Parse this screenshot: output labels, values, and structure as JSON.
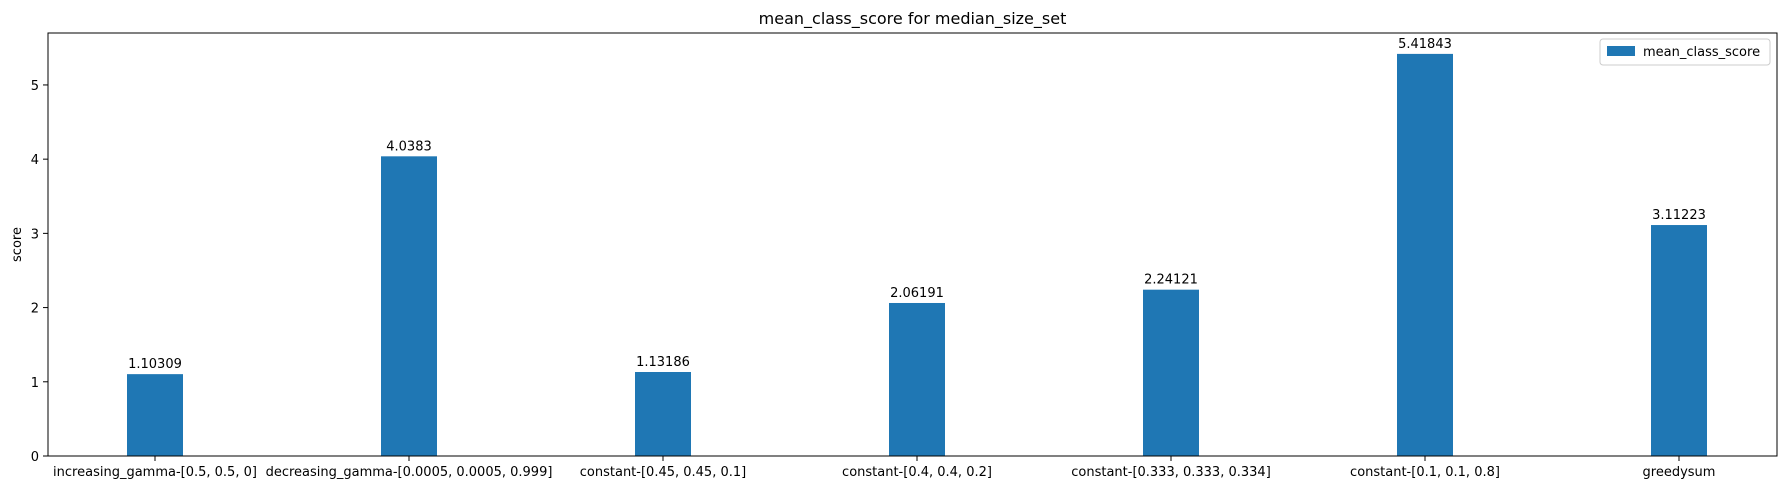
{
  "chart_data": {
    "type": "bar",
    "title": "mean_class_score for median_size_set",
    "xlabel": "",
    "ylabel": "score",
    "categories": [
      "increasing_gamma-[0.5, 0.5, 0]",
      "decreasing_gamma-[0.0005, 0.0005, 0.999]",
      "constant-[0.45, 0.45, 0.1]",
      "constant-[0.4, 0.4, 0.2]",
      "constant-[0.333, 0.333, 0.334]",
      "constant-[0.1, 0.1, 0.8]",
      "greedysum"
    ],
    "series": [
      {
        "name": "mean_class_score",
        "color": "#1f77b4",
        "values": [
          1.10309,
          4.0383,
          1.13186,
          2.06191,
          2.24121,
          5.41843,
          3.11223
        ]
      }
    ],
    "data_labels": [
      "1.10309",
      "4.0383",
      "1.13186",
      "2.06191",
      "2.24121",
      "5.41843",
      "3.11223"
    ],
    "ylim": [
      0,
      5.7
    ],
    "yticks": [
      0,
      1,
      2,
      3,
      4,
      5
    ],
    "grid": false,
    "legend_position": "top-right"
  }
}
